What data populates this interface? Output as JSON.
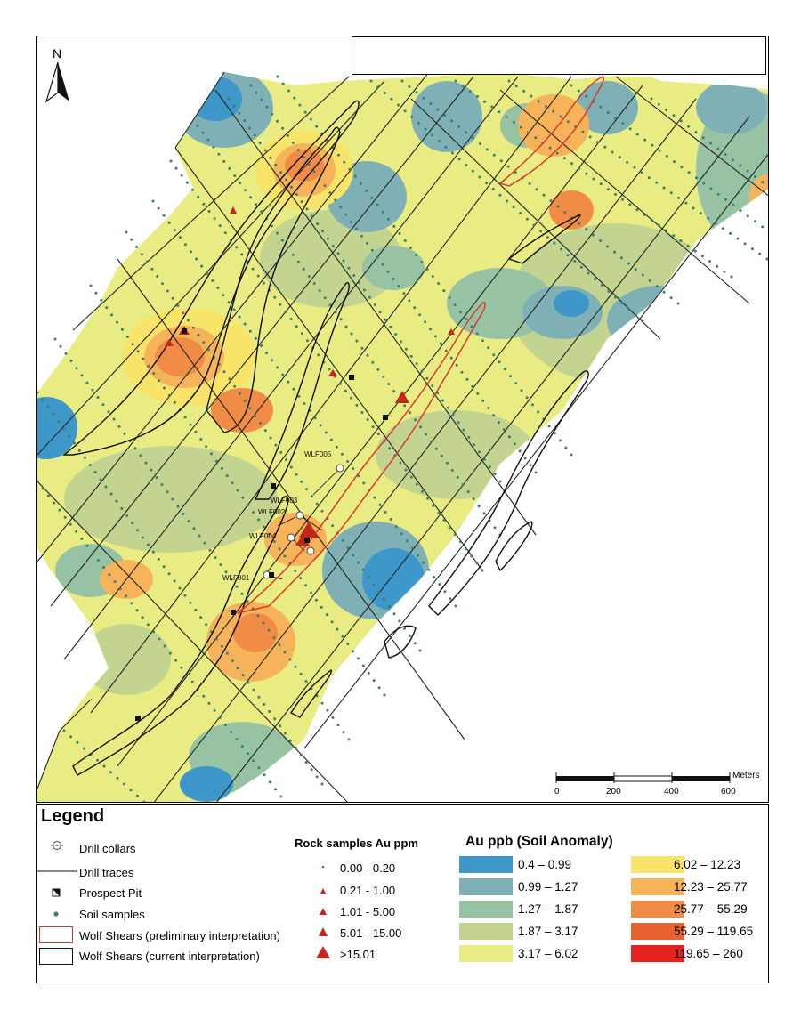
{
  "map": {
    "north_label": "N",
    "drill_labels": [
      "WLF005",
      "WLF003",
      "WLF002",
      "WLF004",
      "WLF001"
    ],
    "colors": {
      "blue": "#3d97c8",
      "teal": "#7fb0b5",
      "green": "#97c2a3",
      "olive": "#c2d490",
      "yellow": "#e8ec82",
      "lightorange": "#f6c463",
      "orange": "#f19a4f",
      "darkorange": "#e9693a",
      "red": "#e5221f",
      "soil_dot": "#3b7f6c",
      "preliminary_outline": "#d63a2a",
      "current_outline": "#111111"
    }
  },
  "scale": {
    "unit": "Meters",
    "ticks": [
      "0",
      "200",
      "400",
      "600"
    ]
  },
  "legend": {
    "title": "Legend",
    "items": [
      {
        "label": "Drill collars",
        "icon": "drill-collar-icon"
      },
      {
        "label": "Drill traces",
        "icon": "drill-trace-line"
      },
      {
        "label": "Prospect Pit",
        "icon": "prospect-pit-icon"
      },
      {
        "label": "Soil samples",
        "icon": "soil-sample-dot"
      },
      {
        "label": "Wolf Shears (preliminary interpretation)",
        "icon": "red-outline-box"
      },
      {
        "label": "Wolf Shears (current interpretation)",
        "icon": "black-outline-box"
      }
    ],
    "rock_title": "Rock samples Au ppm",
    "rock_classes": [
      "0.00 - 0.20",
      "0.21 - 1.00",
      "1.01 - 5.00",
      "5.01 - 15.00",
      ">15.01"
    ],
    "soil_title": "Au ppb (Soil Anomaly)",
    "soil_classes": [
      {
        "label": "0.4 – 0.99",
        "color": "#3d97c8"
      },
      {
        "label": "0.99 – 1.27",
        "color": "#7fb0b5"
      },
      {
        "label": "1.27 – 1.87",
        "color": "#97c2a3"
      },
      {
        "label": "1.87 – 3.17",
        "color": "#c2d490"
      },
      {
        "label": "3.17 – 6.02",
        "color": "#e8ec82"
      },
      {
        "label": "6.02 – 12.23",
        "color": "#f9e46a"
      },
      {
        "label": "12.23 – 25.77",
        "color": "#f6b35a"
      },
      {
        "label": "25.77 – 55.29",
        "color": "#f08c45"
      },
      {
        "label": "55.29 – 119.65",
        "color": "#e9622f"
      },
      {
        "label": "119.65 – 260",
        "color": "#e5221f"
      }
    ]
  }
}
